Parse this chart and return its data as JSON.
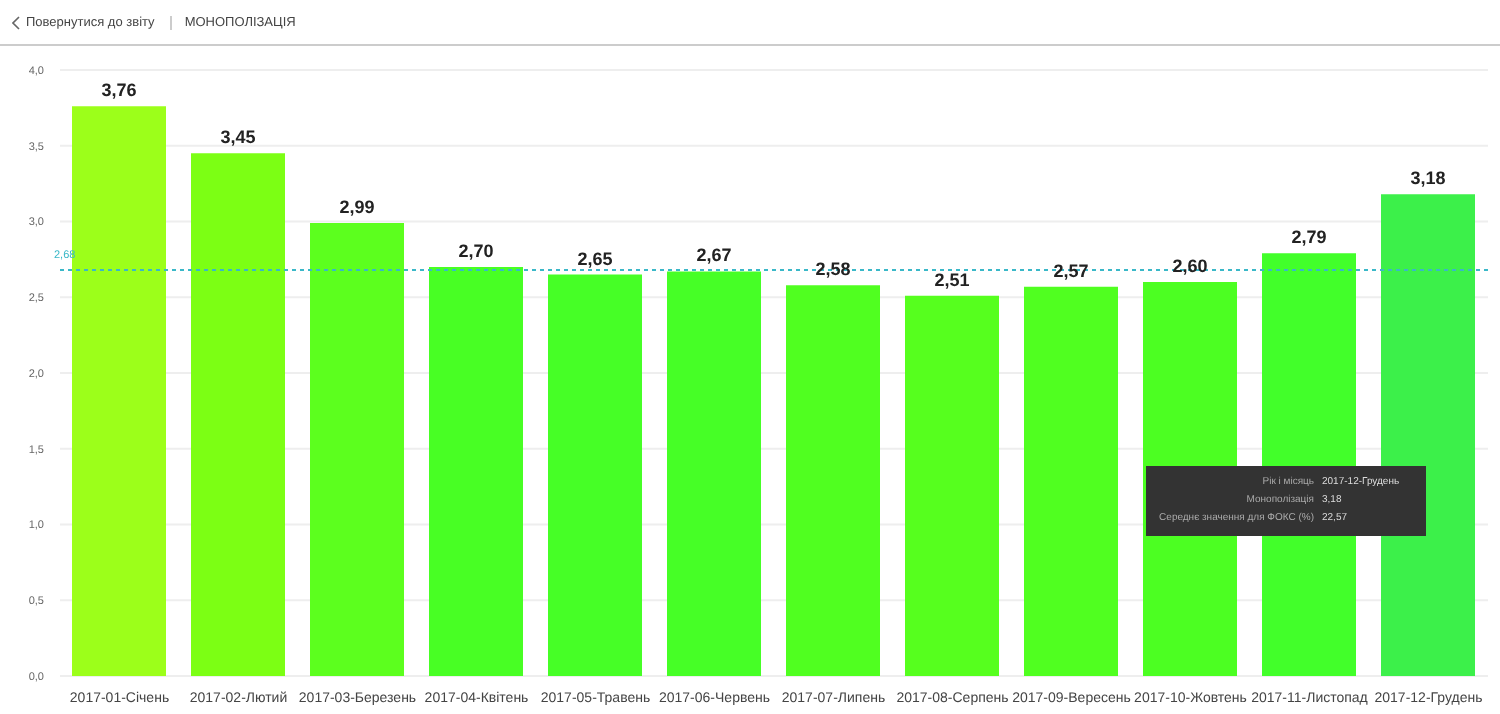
{
  "chart_data": {
    "type": "bar",
    "title": "МОНОПОЛІЗАЦІЯ",
    "categories": [
      "2017-01-Січень",
      "2017-02-Лютий",
      "2017-03-Березень",
      "2017-04-Квітень",
      "2017-05-Травень",
      "2017-06-Червень",
      "2017-07-Липень",
      "2017-08-Серпень",
      "2017-09-Вересень",
      "2017-10-Жовтень",
      "2017-11-Листопад",
      "2017-12-Грудень"
    ],
    "values": [
      3.76,
      3.45,
      2.99,
      2.7,
      2.65,
      2.67,
      2.58,
      2.51,
      2.57,
      2.6,
      2.79,
      3.18
    ],
    "value_labels": [
      "3,76",
      "3,45",
      "2,99",
      "2,70",
      "2,65",
      "2,67",
      "2,58",
      "2,51",
      "2,57",
      "2,60",
      "2,79",
      "3,18"
    ],
    "colors": [
      "#9cff1a",
      "#7cff14",
      "#5cff1e",
      "#48ff24",
      "#46ff26",
      "#46ff26",
      "#50ff20",
      "#56ff1e",
      "#50ff20",
      "#4cff22",
      "#42ff2a",
      "#3cf04a"
    ],
    "ylim": [
      0,
      4
    ],
    "yticks": [
      {
        "value": 0,
        "label": "0,0"
      },
      {
        "value": 0.5,
        "label": "0,5"
      },
      {
        "value": 1,
        "label": "1,0"
      },
      {
        "value": 1.5,
        "label": "1,5"
      },
      {
        "value": 2,
        "label": "2,0"
      },
      {
        "value": 2.5,
        "label": "2,5"
      },
      {
        "value": 3,
        "label": "3,0"
      },
      {
        "value": 3.5,
        "label": "3,5"
      },
      {
        "value": 4,
        "label": "4,0"
      }
    ],
    "grid": "y",
    "legend": false,
    "ref_lines": [
      {
        "axis": "y",
        "value": 2.68,
        "label": "2,68",
        "color": "#3ab8c8",
        "line_style": "dotted"
      }
    ],
    "annotations": [
      "Повернутися до звіту",
      "Рік і місяць",
      "2017-12-Грудень",
      "Монополізація",
      "3,18",
      "Середнє значення для ФОКС (%)",
      "22,57"
    ]
  }
}
